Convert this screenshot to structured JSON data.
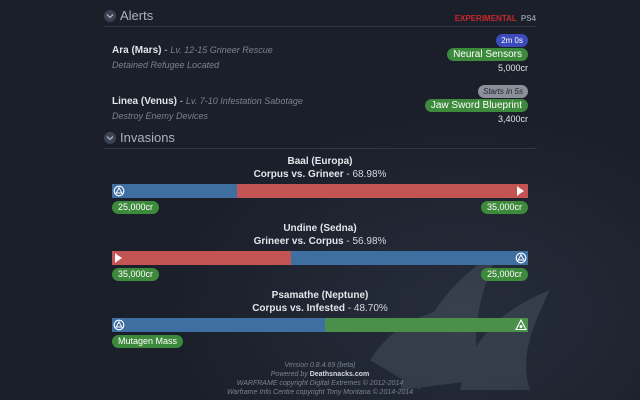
{
  "header": {
    "alerts_title": "Alerts",
    "experimental": "EXPERIMENTAL",
    "platform": "PS4"
  },
  "alerts": [
    {
      "node": "Ara (Mars)",
      "dash": "-",
      "mission": "Lv. 12-15 Grineer Rescue",
      "description": "Detained Refugee Located",
      "timer": "2m 0s",
      "reward": "Neural Sensors",
      "credits": "5,000cr"
    },
    {
      "node": "Linea (Venus)",
      "dash": "-",
      "mission": "Lv. 7-10 Infestation Sabotage",
      "description": "Destroy Enemy Devices",
      "timer": "Starts in 5s",
      "reward": "Jaw Sword Blueprint",
      "credits": "3,400cr"
    }
  ],
  "invasions_title": "Invasions",
  "invasions": [
    {
      "node": "Baal (Europa)",
      "factions": "Corpus vs. Grineer",
      "percent": "- 68.98%",
      "left_fraction": 0.3,
      "left_faction": "corpus",
      "right_faction": "grineer",
      "left_reward": "25,000cr",
      "right_reward": "35,000cr"
    },
    {
      "node": "Undine (Sedna)",
      "factions": "Grineer vs. Corpus",
      "percent": "- 56.98%",
      "left_fraction": 0.43,
      "left_faction": "grineer",
      "right_faction": "corpus",
      "left_reward": "35,000cr",
      "right_reward": "25,000cr"
    },
    {
      "node": "Psamathe (Neptune)",
      "factions": "Corpus vs. Infested",
      "percent": "- 48.70%",
      "left_fraction": 0.513,
      "left_faction": "corpus",
      "right_faction": "infested",
      "left_reward": "Mutagen Mass",
      "right_reward": ""
    }
  ],
  "footer": {
    "version": "Version 0.8.4.69 (beta)",
    "powered_prefix": "Powered by",
    "powered_site": "Deathsnacks.com",
    "copyright1": "WARFRAME copyright Digital Extremes © 2012-2014",
    "copyright2": "Warframe Info Centre copyright Tony Montana © 2014-2014"
  },
  "colors": {
    "corpus": "#3f6fa0",
    "grineer": "#c45454",
    "infested": "#4a8f4a",
    "reward": "#3d8a3c",
    "timer": "#3b4bbb",
    "experimental": "#c8282a"
  }
}
